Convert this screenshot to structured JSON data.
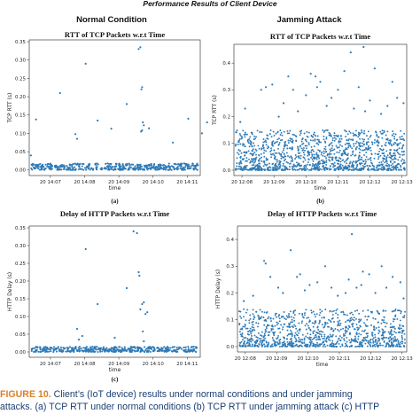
{
  "figure": {
    "main_title": "Performance Results of Client Device",
    "left_heading": "Normal Condition",
    "right_heading": "Jamming Attack",
    "caption_label": "FIGURE 10.",
    "caption_line1": " Client’s (IoT device) results under normal conditions and under jamming",
    "caption_line2": "attacks. (a) TCP RTT under normal conditions (b) TCP RTT under jamming attack (c) HTTP"
  },
  "colors": {
    "points": "#2f7bb6",
    "caption_label": "#d9822b",
    "caption_text": "#1b3e73"
  },
  "chart_data": [
    {
      "id": "a",
      "type": "scatter",
      "sublabel": "(a)",
      "title": "RTT of TCP Packets w.r.t Time",
      "xlabel": "time",
      "ylabel": "TCP RTT (s)",
      "xticks": [
        "20 14:07",
        "20 14:08",
        "20 14:09",
        "20 14:10",
        "20 14:11"
      ],
      "xrange": [
        0,
        5
      ],
      "xtick_pos": [
        0.62,
        1.62,
        2.62,
        3.62,
        4.62
      ],
      "ylim": [
        -0.015,
        0.355
      ],
      "yticks": [
        "0.00",
        "0.05",
        "0.10",
        "0.15",
        "0.20",
        "0.25",
        "0.30",
        "0.35"
      ],
      "ytick_vals": [
        0,
        0.05,
        0.1,
        0.15,
        0.2,
        0.25,
        0.3,
        0.35
      ],
      "baseline": {
        "min": 0.0,
        "max": 0.018,
        "count": 460
      },
      "points": [
        [
          0.2,
          0.138
        ],
        [
          0.9,
          0.21
        ],
        [
          1.35,
          0.098
        ],
        [
          1.4,
          0.085
        ],
        [
          1.65,
          0.29
        ],
        [
          2.0,
          0.135
        ],
        [
          2.4,
          0.113
        ],
        [
          2.85,
          0.18
        ],
        [
          3.2,
          0.33
        ],
        [
          3.25,
          0.335
        ],
        [
          3.3,
          0.226
        ],
        [
          3.28,
          0.22
        ],
        [
          3.5,
          0.114
        ],
        [
          3.32,
          0.13
        ],
        [
          3.35,
          0.122
        ],
        [
          3.3,
          0.108
        ],
        [
          3.27,
          0.105
        ],
        [
          4.2,
          0.075
        ],
        [
          4.65,
          0.14
        ],
        [
          5.05,
          0.1
        ],
        [
          5.2,
          0.13
        ],
        [
          0.05,
          0.04
        ]
      ]
    },
    {
      "id": "b",
      "type": "scatter",
      "sublabel": "(b)",
      "title": "RTT of TCP Packets w.r.t Time",
      "xlabel": "time",
      "ylabel": "TCP RTT (s)",
      "xticks": [
        "20 12:08",
        "20 12:09",
        "20 12:10",
        "20 12:11",
        "20 12:12",
        "20 12:13"
      ],
      "xrange": [
        0,
        5.4
      ],
      "xtick_pos": [
        0.25,
        1.25,
        2.25,
        3.25,
        4.25,
        5.25
      ],
      "ylim": [
        -0.02,
        0.47
      ],
      "yticks": [
        "0.0",
        "0.1",
        "0.2",
        "0.3",
        "0.4"
      ],
      "ytick_vals": [
        0,
        0.1,
        0.2,
        0.3,
        0.4
      ],
      "dense": {
        "count": 1300,
        "low": 0.0,
        "high": 0.15
      },
      "points": [
        [
          0.2,
          0.18
        ],
        [
          0.35,
          0.23
        ],
        [
          0.55,
          0.14
        ],
        [
          0.85,
          0.3
        ],
        [
          1.0,
          0.31
        ],
        [
          1.2,
          0.32
        ],
        [
          1.4,
          0.2
        ],
        [
          1.55,
          0.25
        ],
        [
          1.7,
          0.35
        ],
        [
          1.85,
          0.3
        ],
        [
          2.0,
          0.22
        ],
        [
          2.25,
          0.28
        ],
        [
          2.4,
          0.36
        ],
        [
          2.55,
          0.35
        ],
        [
          2.7,
          0.33
        ],
        [
          2.9,
          0.24
        ],
        [
          3.05,
          0.27
        ],
        [
          3.25,
          0.3
        ],
        [
          3.45,
          0.37
        ],
        [
          3.65,
          0.44
        ],
        [
          3.75,
          0.23
        ],
        [
          3.9,
          0.31
        ],
        [
          4.1,
          0.22
        ],
        [
          4.25,
          0.26
        ],
        [
          4.4,
          0.38
        ],
        [
          4.6,
          0.21
        ],
        [
          4.8,
          0.24
        ],
        [
          4.95,
          0.33
        ],
        [
          5.1,
          0.27
        ],
        [
          5.3,
          0.25
        ],
        [
          4.05,
          0.46
        ],
        [
          2.6,
          0.31
        ]
      ]
    },
    {
      "id": "c",
      "type": "scatter",
      "sublabel": "(c)",
      "title": "Delay of HTTP Packets w.r.t Time",
      "xlabel": "time",
      "ylabel": "HTTP Delay (s)",
      "xticks": [
        "20 14:07",
        "20 14:08",
        "20 14:09",
        "20 14:10",
        "20 14:11"
      ],
      "xrange": [
        0,
        5
      ],
      "xtick_pos": [
        0.62,
        1.62,
        2.62,
        3.62,
        4.62
      ],
      "ylim": [
        -0.015,
        0.355
      ],
      "yticks": [
        "0.00",
        "0.05",
        "0.10",
        "0.15",
        "0.20",
        "0.25",
        "0.30",
        "0.35"
      ],
      "ytick_vals": [
        0,
        0.05,
        0.1,
        0.15,
        0.2,
        0.25,
        0.3,
        0.35
      ],
      "baseline": {
        "min": 0.0,
        "max": 0.015,
        "count": 460
      },
      "points": [
        [
          1.4,
          0.065
        ],
        [
          1.45,
          0.035
        ],
        [
          1.65,
          0.29
        ],
        [
          2.0,
          0.135
        ],
        [
          2.85,
          0.18
        ],
        [
          3.05,
          0.34
        ],
        [
          3.15,
          0.335
        ],
        [
          3.2,
          0.225
        ],
        [
          3.22,
          0.215
        ],
        [
          3.35,
          0.14
        ],
        [
          3.3,
          0.135
        ],
        [
          3.25,
          0.12
        ],
        [
          3.45,
          0.112
        ],
        [
          3.4,
          0.107
        ],
        [
          3.32,
          0.058
        ],
        [
          3.35,
          0.03
        ],
        [
          2.5,
          0.04
        ],
        [
          1.55,
          0.045
        ]
      ]
    },
    {
      "id": "d",
      "type": "scatter",
      "sublabel": "",
      "title": "Delay of HTTP Packets w.r.t Time",
      "xlabel": "time",
      "ylabel": "HTTP Delay (s)",
      "xticks": [
        "20 12:08",
        "20 12:09",
        "20 12:10",
        "20 12:11",
        "20 12:12",
        "20 12:13"
      ],
      "xrange": [
        0,
        5.4
      ],
      "xtick_pos": [
        0.25,
        1.25,
        2.25,
        3.25,
        4.25,
        5.25
      ],
      "ylim": [
        -0.02,
        0.45
      ],
      "yticks": [
        "0.0",
        "0.1",
        "0.2",
        "0.3",
        "0.4"
      ],
      "ytick_vals": [
        0,
        0.1,
        0.2,
        0.3,
        0.4
      ],
      "dense": {
        "count": 1000,
        "low": 0.0,
        "high": 0.14
      },
      "points": [
        [
          0.2,
          0.17
        ],
        [
          0.5,
          0.19
        ],
        [
          0.85,
          0.32
        ],
        [
          0.9,
          0.31
        ],
        [
          1.05,
          0.26
        ],
        [
          1.3,
          0.22
        ],
        [
          1.45,
          0.2
        ],
        [
          1.7,
          0.36
        ],
        [
          1.9,
          0.26
        ],
        [
          2.15,
          0.21
        ],
        [
          2.3,
          0.23
        ],
        [
          2.55,
          0.24
        ],
        [
          2.8,
          0.3
        ],
        [
          3.0,
          0.22
        ],
        [
          3.2,
          0.19
        ],
        [
          3.45,
          0.2
        ],
        [
          3.55,
          0.25
        ],
        [
          3.65,
          0.42
        ],
        [
          3.8,
          0.22
        ],
        [
          4.0,
          0.28
        ],
        [
          4.2,
          0.27
        ],
        [
          4.4,
          0.2
        ],
        [
          4.6,
          0.3
        ],
        [
          4.75,
          0.22
        ],
        [
          4.95,
          0.26
        ],
        [
          5.2,
          0.24
        ],
        [
          3.95,
          0.23
        ],
        [
          2.0,
          0.27
        ],
        [
          0.6,
          0.13
        ],
        [
          5.3,
          0.18
        ]
      ]
    }
  ]
}
